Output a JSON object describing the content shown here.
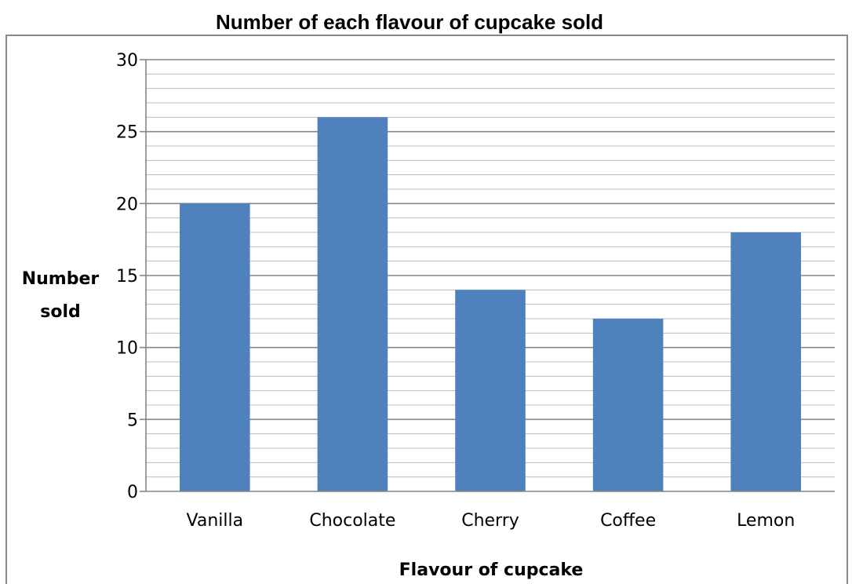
{
  "chart_data": {
    "type": "bar",
    "title": "Number of each flavour of cupcake sold",
    "xlabel": "Flavour of cupcake",
    "ylabel_lines": [
      "Number",
      "sold"
    ],
    "categories": [
      "Vanilla",
      "Chocolate",
      "Cherry",
      "Coffee",
      "Lemon"
    ],
    "values": [
      20,
      26,
      14,
      12,
      18
    ],
    "ylim": [
      0,
      30
    ],
    "major_ticks": [
      0,
      5,
      10,
      15,
      20,
      25,
      30
    ],
    "minor_step": 1,
    "grid": true,
    "legend": "none",
    "bar_color": "#4f81bd"
  }
}
